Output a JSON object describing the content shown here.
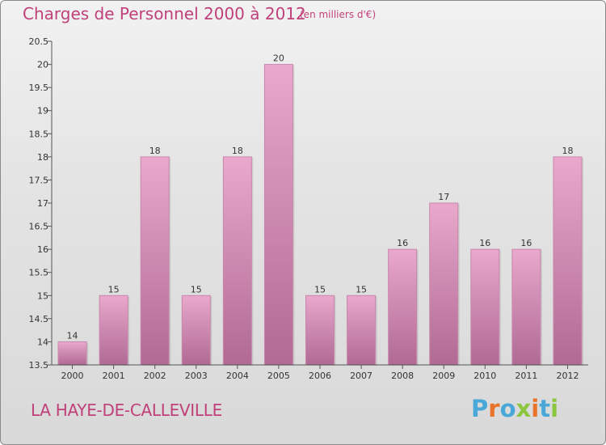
{
  "header": {
    "title": "Charges de Personnel 2000 à 2012",
    "unit": "(en milliers d'€)"
  },
  "footer": {
    "commune": "LA HAYE-DE-CALLEVILLE",
    "logo_text": "Proxiti",
    "logo_colors": [
      "#4aa8d8",
      "#e8732a",
      "#4aa8d8",
      "#8cc63f",
      "#e8732a",
      "#4aa8d8",
      "#8cc63f"
    ]
  },
  "colors": {
    "bar_top": "#e9a8cc",
    "bar_bottom": "#b06a94",
    "title": "#c0407a"
  },
  "chart_data": {
    "type": "bar",
    "categories": [
      "2000",
      "2001",
      "2002",
      "2003",
      "2004",
      "2005",
      "2006",
      "2007",
      "2008",
      "2009",
      "2010",
      "2011",
      "2012"
    ],
    "values": [
      14,
      15,
      18,
      15,
      18,
      20,
      15,
      15,
      16,
      17,
      16,
      16,
      18
    ],
    "labels": [
      "14",
      "15",
      "18",
      "15",
      "18",
      "20",
      "15",
      "15",
      "16",
      "17",
      "16",
      "16",
      "18"
    ],
    "ylim": [
      13.5,
      20.5
    ],
    "yticks": [
      13.5,
      14,
      14.5,
      15,
      15.5,
      16,
      16.5,
      17,
      17.5,
      18,
      18.5,
      19,
      19.5,
      20,
      20.5
    ],
    "ytick_labels": [
      "13.5",
      "14",
      "14.5",
      "15",
      "15.5",
      "16",
      "16.5",
      "17",
      "17.5",
      "18",
      "18.5",
      "19",
      "19.5",
      "20",
      "20.5"
    ],
    "grid": false
  }
}
